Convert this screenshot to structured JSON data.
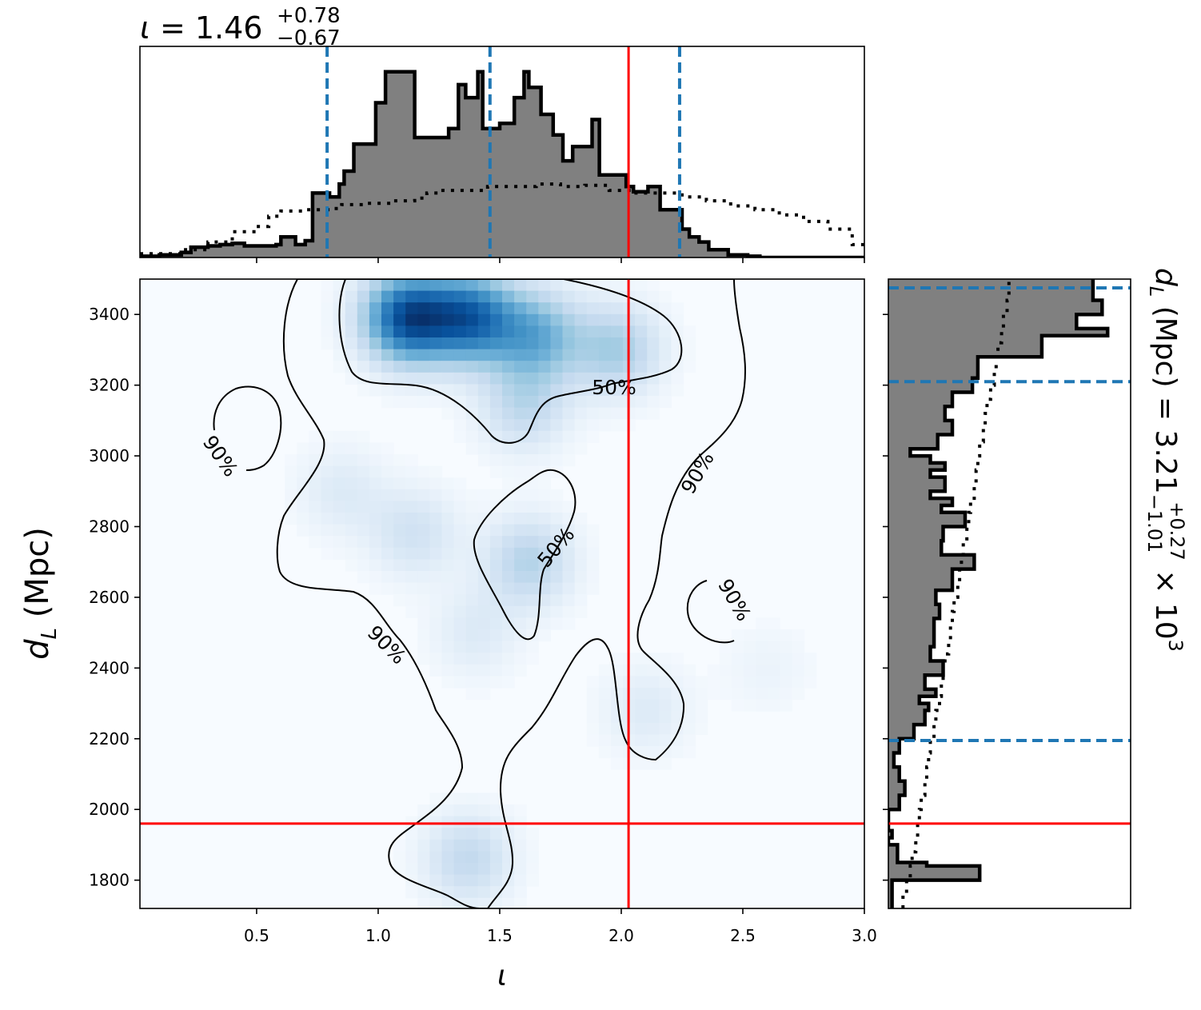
{
  "chart_data": {
    "type": "corner",
    "panels": [
      {
        "panel": "top-marginal",
        "type": "histogram",
        "title": {
          "symbol": "ι",
          "value": "1.46",
          "upper": "+0.78",
          "lower": "−0.67"
        },
        "xlim": [
          0.02,
          3.0
        ],
        "posterior_steps": {
          "edges": [
            0.02,
            0.1,
            0.19,
            0.23,
            0.3,
            0.35,
            0.4,
            0.45,
            0.58,
            0.6,
            0.66,
            0.7,
            0.73,
            0.79,
            0.8,
            0.84,
            0.86,
            0.9,
            0.93,
            0.99,
            1.03,
            1.09,
            1.15,
            1.18,
            1.29,
            1.33,
            1.36,
            1.41,
            1.43,
            1.47,
            1.5,
            1.56,
            1.6,
            1.62,
            1.67,
            1.72,
            1.76,
            1.79,
            1.8,
            1.84,
            1.88,
            1.91,
            1.96,
            2.02,
            2.05,
            2.11,
            2.16,
            2.2,
            2.25,
            2.28,
            2.32,
            2.36,
            2.41,
            2.44,
            2.52,
            2.57,
            2.62,
            2.67,
            2.73,
            2.8,
            2.9,
            3.0
          ],
          "density": [
            0.01,
            0.02,
            0.04,
            0.08,
            0.09,
            0.1,
            0.11,
            0.09,
            0.1,
            0.16,
            0.1,
            0.13,
            0.5,
            0.5,
            0.47,
            0.57,
            0.67,
            0.88,
            0.88,
            1.2,
            1.44,
            1.44,
            0.93,
            0.93,
            1.0,
            1.34,
            1.24,
            1.44,
            1.0,
            1.0,
            1.04,
            1.24,
            1.44,
            1.32,
            1.11,
            0.95,
            0.75,
            0.75,
            0.86,
            0.86,
            1.07,
            0.64,
            0.64,
            0.55,
            0.51,
            0.55,
            0.37,
            0.37,
            0.22,
            0.16,
            0.12,
            0.06,
            0.06,
            0.02,
            0.01,
            0.0,
            0.0,
            0.0,
            0.0,
            0.0,
            0.0
          ]
        },
        "prior_steps": {
          "edges": [
            0.02,
            0.2,
            0.3,
            0.4,
            0.5,
            0.55,
            0.6,
            0.7,
            0.8,
            0.85,
            0.95,
            1.05,
            1.15,
            1.2,
            1.25,
            1.35,
            1.45,
            1.55,
            1.65,
            1.75,
            1.85,
            1.95,
            2.05,
            2.15,
            2.25,
            2.35,
            2.45,
            2.55,
            2.65,
            2.75,
            2.85,
            2.95,
            3.0
          ],
          "density": [
            0.03,
            0.06,
            0.12,
            0.2,
            0.24,
            0.32,
            0.36,
            0.37,
            0.38,
            0.41,
            0.42,
            0.44,
            0.46,
            0.5,
            0.52,
            0.52,
            0.55,
            0.55,
            0.57,
            0.55,
            0.56,
            0.52,
            0.5,
            0.5,
            0.47,
            0.44,
            0.4,
            0.37,
            0.33,
            0.28,
            0.22,
            0.1
          ]
        },
        "quantile_lines": [
          0.79,
          1.46,
          2.24
        ],
        "truth": 2.03,
        "ticks": [
          0.5,
          1.0,
          1.5,
          2.0,
          2.5,
          3.0
        ]
      },
      {
        "panel": "joint",
        "type": "heatmap",
        "xlabel": "ι",
        "ylabel": {
          "symbol": "d",
          "subscript": "L",
          "unit": "(Mpc)"
        },
        "xlim": [
          0.02,
          3.0
        ],
        "ylim": [
          1720,
          3500
        ],
        "xticks": [
          "0.5",
          "1.0",
          "1.5",
          "2.0",
          "2.5",
          "3.0"
        ],
        "yticks": [
          "1800",
          "2000",
          "2200",
          "2400",
          "2600",
          "2800",
          "3000",
          "3200",
          "3400"
        ],
        "density_peaks": [
          {
            "x": 1.12,
            "y": 3390,
            "weight": 1.0
          },
          {
            "x": 1.38,
            "y": 3390,
            "weight": 0.85
          },
          {
            "x": 1.65,
            "y": 3340,
            "weight": 0.55
          },
          {
            "x": 1.98,
            "y": 3300,
            "weight": 0.4
          },
          {
            "x": 1.6,
            "y": 3140,
            "weight": 0.3
          },
          {
            "x": 1.62,
            "y": 2700,
            "weight": 0.35
          },
          {
            "x": 1.15,
            "y": 2780,
            "weight": 0.22
          },
          {
            "x": 0.85,
            "y": 2900,
            "weight": 0.15
          },
          {
            "x": 1.4,
            "y": 2500,
            "weight": 0.15
          },
          {
            "x": 2.1,
            "y": 2280,
            "weight": 0.15
          },
          {
            "x": 1.37,
            "y": 1860,
            "weight": 0.3
          },
          {
            "x": 2.6,
            "y": 2400,
            "weight": 0.07
          }
        ],
        "contours": [
          {
            "level": "50%",
            "label_at": {
              "x": 1.97,
              "y": 3190
            }
          },
          {
            "level": "50%",
            "label_at": {
              "x": 1.73,
              "y": 2680
            }
          },
          {
            "level": "90%",
            "label_at": {
              "x": 0.42,
              "y": 2990
            }
          },
          {
            "level": "90%",
            "label_at": {
              "x": 2.3,
              "y": 2850
            }
          },
          {
            "level": "90%",
            "label_at": {
              "x": 2.37,
              "y": 2570
            }
          },
          {
            "level": "90%",
            "label_at": {
              "x": 1.05,
              "y": 2440
            }
          }
        ],
        "truth": {
          "x": 2.03,
          "y": 1960
        }
      },
      {
        "panel": "right-marginal",
        "type": "histogram",
        "orientation": "horizontal",
        "title": {
          "symbol": "d",
          "subscript": "L",
          "unit": "(Mpc)",
          "value": "3.21",
          "upper": "+0.27",
          "lower": "−1.01",
          "exponent": "3"
        },
        "ylim": [
          1720,
          3500
        ],
        "posterior_steps": {
          "edges": [
            1720,
            1790,
            1800,
            1840,
            1850,
            1870,
            1900,
            1920,
            1940,
            1960,
            2000,
            2040,
            2080,
            2120,
            2160,
            2200,
            2240,
            2280,
            2300,
            2320,
            2340,
            2380,
            2420,
            2440,
            2460,
            2500,
            2540,
            2580,
            2620,
            2660,
            2680,
            2700,
            2720,
            2760,
            2800,
            2840,
            2860,
            2880,
            2900,
            2940,
            2960,
            2980,
            3000,
            3020,
            3060,
            3100,
            3140,
            3180,
            3220,
            3240,
            3260,
            3280,
            3300,
            3320,
            3340,
            3360,
            3380,
            3400,
            3420,
            3440,
            3460,
            3500
          ],
          "density": [
            0.02,
            0.02,
            0.5,
            0.21,
            0.05,
            0.05,
            0.0,
            0.02,
            0.0,
            0.0,
            0.06,
            0.09,
            0.06,
            0.03,
            0.06,
            0.14,
            0.2,
            0.22,
            0.17,
            0.26,
            0.2,
            0.3,
            0.23,
            0.23,
            0.25,
            0.25,
            0.28,
            0.26,
            0.35,
            0.35,
            0.47,
            0.47,
            0.29,
            0.3,
            0.42,
            0.29,
            0.35,
            0.23,
            0.31,
            0.23,
            0.31,
            0.23,
            0.12,
            0.27,
            0.35,
            0.31,
            0.35,
            0.46,
            0.49,
            0.49,
            0.49,
            0.84,
            0.84,
            0.84,
            1.2,
            1.03,
            1.03,
            1.17,
            1.17,
            1.12,
            1.12
          ]
        },
        "prior_steps": {
          "edges": [
            1720,
            1760,
            1800,
            1840,
            1880,
            1920,
            1960,
            2000,
            2040,
            2080,
            2120,
            2160,
            2200,
            2240,
            2280,
            2320,
            2360,
            2400,
            2440,
            2480,
            2520,
            2560,
            2600,
            2640,
            2680,
            2720,
            2760,
            2800,
            2840,
            2880,
            2920,
            2960,
            3000,
            3040,
            3080,
            3120,
            3160,
            3200,
            3240,
            3280,
            3320,
            3360,
            3400,
            3440,
            3500
          ],
          "density": [
            0.08,
            0.1,
            0.12,
            0.13,
            0.15,
            0.16,
            0.17,
            0.18,
            0.2,
            0.21,
            0.22,
            0.23,
            0.25,
            0.26,
            0.28,
            0.29,
            0.3,
            0.31,
            0.33,
            0.34,
            0.35,
            0.36,
            0.38,
            0.39,
            0.4,
            0.41,
            0.43,
            0.44,
            0.45,
            0.47,
            0.48,
            0.49,
            0.5,
            0.52,
            0.53,
            0.54,
            0.56,
            0.58,
            0.59,
            0.6,
            0.62,
            0.63,
            0.65,
            0.66
          ]
        },
        "quantile_lines": [
          2195,
          3210,
          3475
        ],
        "truth": 1960
      }
    ],
    "colors": {
      "posterior_fill": "#808080",
      "outline": "#000000",
      "quantile": "#1f77b4",
      "truth": "#ff0000",
      "colormap": "Blues"
    }
  }
}
